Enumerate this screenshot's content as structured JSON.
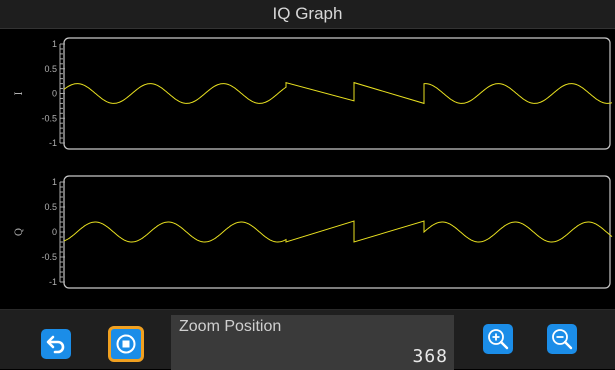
{
  "window": {
    "title": "IQ Graph"
  },
  "colors": {
    "trace": "#e8e020",
    "frame": "#c8c8c8",
    "button": "#1b8de8",
    "stop_border": "#f0a020"
  },
  "plots": [
    {
      "name": "I",
      "yticks": [
        "1",
        "0.5",
        "0",
        "-0.5",
        "-1"
      ]
    },
    {
      "name": "Q",
      "yticks": [
        "1",
        "0.5",
        "0",
        "-0.5",
        "-1"
      ]
    }
  ],
  "chart_data": [
    {
      "type": "line",
      "title": "",
      "ylabel": "I",
      "ylim": [
        -1,
        1
      ],
      "series": [
        {
          "segments": [
            {
              "kind": "sine",
              "x": [
                0,
                222
              ],
              "amplitude": 0.2,
              "period": 73,
              "phase": 5
            },
            {
              "kind": "jump",
              "x": 222,
              "values": [
                -0.1,
                0.22
              ]
            },
            {
              "kind": "ramp",
              "x": [
                222,
                290
              ],
              "values": [
                0.22,
                -0.15
              ]
            },
            {
              "kind": "jump",
              "x": 290,
              "values": [
                -0.15,
                0.22
              ]
            },
            {
              "kind": "ramp",
              "x": [
                290,
                360
              ],
              "values": [
                0.22,
                -0.2
              ]
            },
            {
              "kind": "jump",
              "x": 360,
              "values": [
                -0.2,
                0.02
              ]
            },
            {
              "kind": "sine",
              "x": [
                360,
                548
              ],
              "amplitude": 0.2,
              "period": 73,
              "phase": 22
            }
          ]
        }
      ]
    },
    {
      "type": "line",
      "title": "",
      "ylabel": "Q",
      "ylim": [
        -1,
        1
      ],
      "series": [
        {
          "segments": [
            {
              "kind": "sine",
              "x": [
                0,
                222
              ],
              "amplitude": 0.2,
              "period": 73,
              "phase": -13
            },
            {
              "kind": "jump",
              "x": 222,
              "values": [
                0.22,
                -0.2
              ]
            },
            {
              "kind": "ramp",
              "x": [
                222,
                290
              ],
              "values": [
                -0.2,
                0.22
              ]
            },
            {
              "kind": "jump",
              "x": 290,
              "values": [
                0.22,
                -0.2
              ]
            },
            {
              "kind": "ramp",
              "x": [
                290,
                360
              ],
              "values": [
                -0.2,
                0.22
              ]
            },
            {
              "kind": "sine",
              "x": [
                360,
                548
              ],
              "amplitude": 0.2,
              "period": 73,
              "phase": 5
            }
          ]
        }
      ]
    }
  ],
  "toolbar": {
    "back_icon": "undo-arrow-icon",
    "stop_icon": "stop-icon",
    "zoom_label": "Zoom Position",
    "zoom_value": "368",
    "zoom_in_icon": "zoom-in-icon",
    "zoom_out_icon": "zoom-out-icon"
  }
}
